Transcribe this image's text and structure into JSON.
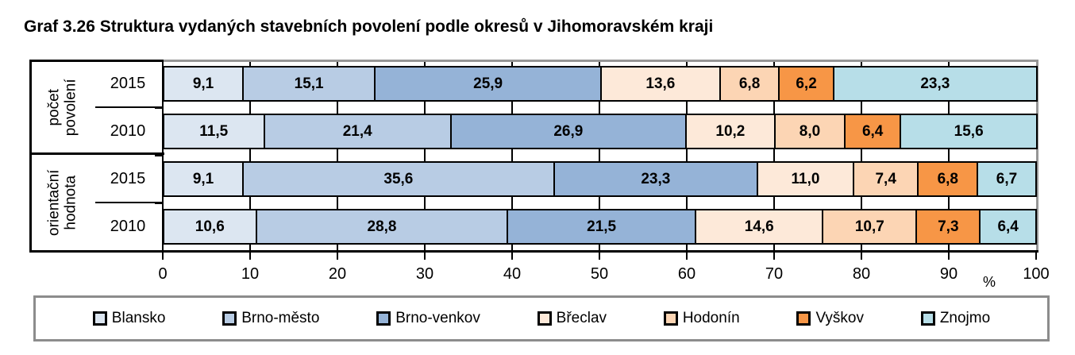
{
  "title": "Graf 3.26 Struktura vydaných stavebních povolení podle okresů v Jihomoravském kraji",
  "chart_data": {
    "type": "bar",
    "stacked": true,
    "orientation": "horizontal",
    "title": "Graf 3.26 Struktura vydaných stavebních povolení podle okresů v Jihomoravském kraji",
    "xlabel": "%",
    "xlim": [
      0,
      100
    ],
    "xtick_labels": [
      "0",
      "10",
      "20",
      "30",
      "40",
      "50",
      "60",
      "70",
      "80",
      "90",
      "100"
    ],
    "grid": true,
    "legend_position": "bottom",
    "value_label_decimal_separator": ",",
    "groups": [
      {
        "label": "počet povolení",
        "label_lines": [
          "počet",
          "povolení"
        ]
      },
      {
        "label": "orientační hodnota",
        "label_lines": [
          "orientační",
          "hodnota"
        ]
      }
    ],
    "rows": [
      {
        "group_index": 0,
        "year": "2015",
        "values": [
          9.1,
          15.1,
          25.9,
          13.6,
          6.8,
          6.2,
          23.3
        ]
      },
      {
        "group_index": 0,
        "year": "2010",
        "values": [
          11.5,
          21.4,
          26.9,
          10.2,
          8.0,
          6.4,
          15.6
        ]
      },
      {
        "group_index": 1,
        "year": "2015",
        "values": [
          9.1,
          35.6,
          23.3,
          11.0,
          7.4,
          6.8,
          6.7
        ]
      },
      {
        "group_index": 1,
        "year": "2010",
        "values": [
          10.6,
          28.8,
          21.5,
          14.6,
          10.7,
          7.3,
          6.4
        ]
      }
    ],
    "series": [
      {
        "name": "Blansko",
        "color": "#dce6f1"
      },
      {
        "name": "Brno-město",
        "color": "#b8cce4"
      },
      {
        "name": "Brno-venkov",
        "color": "#95b3d7"
      },
      {
        "name": "Břeclav",
        "color": "#fde9d9"
      },
      {
        "name": "Hodonín",
        "color": "#fcd5b4"
      },
      {
        "name": "Vyškov",
        "color": "#f79646"
      },
      {
        "name": "Znojmo",
        "color": "#b7dee8"
      }
    ],
    "frame_colors": {
      "axis": "#000000",
      "plot_border_gray": "#969696",
      "legend_border": "#8c8c8c"
    }
  }
}
